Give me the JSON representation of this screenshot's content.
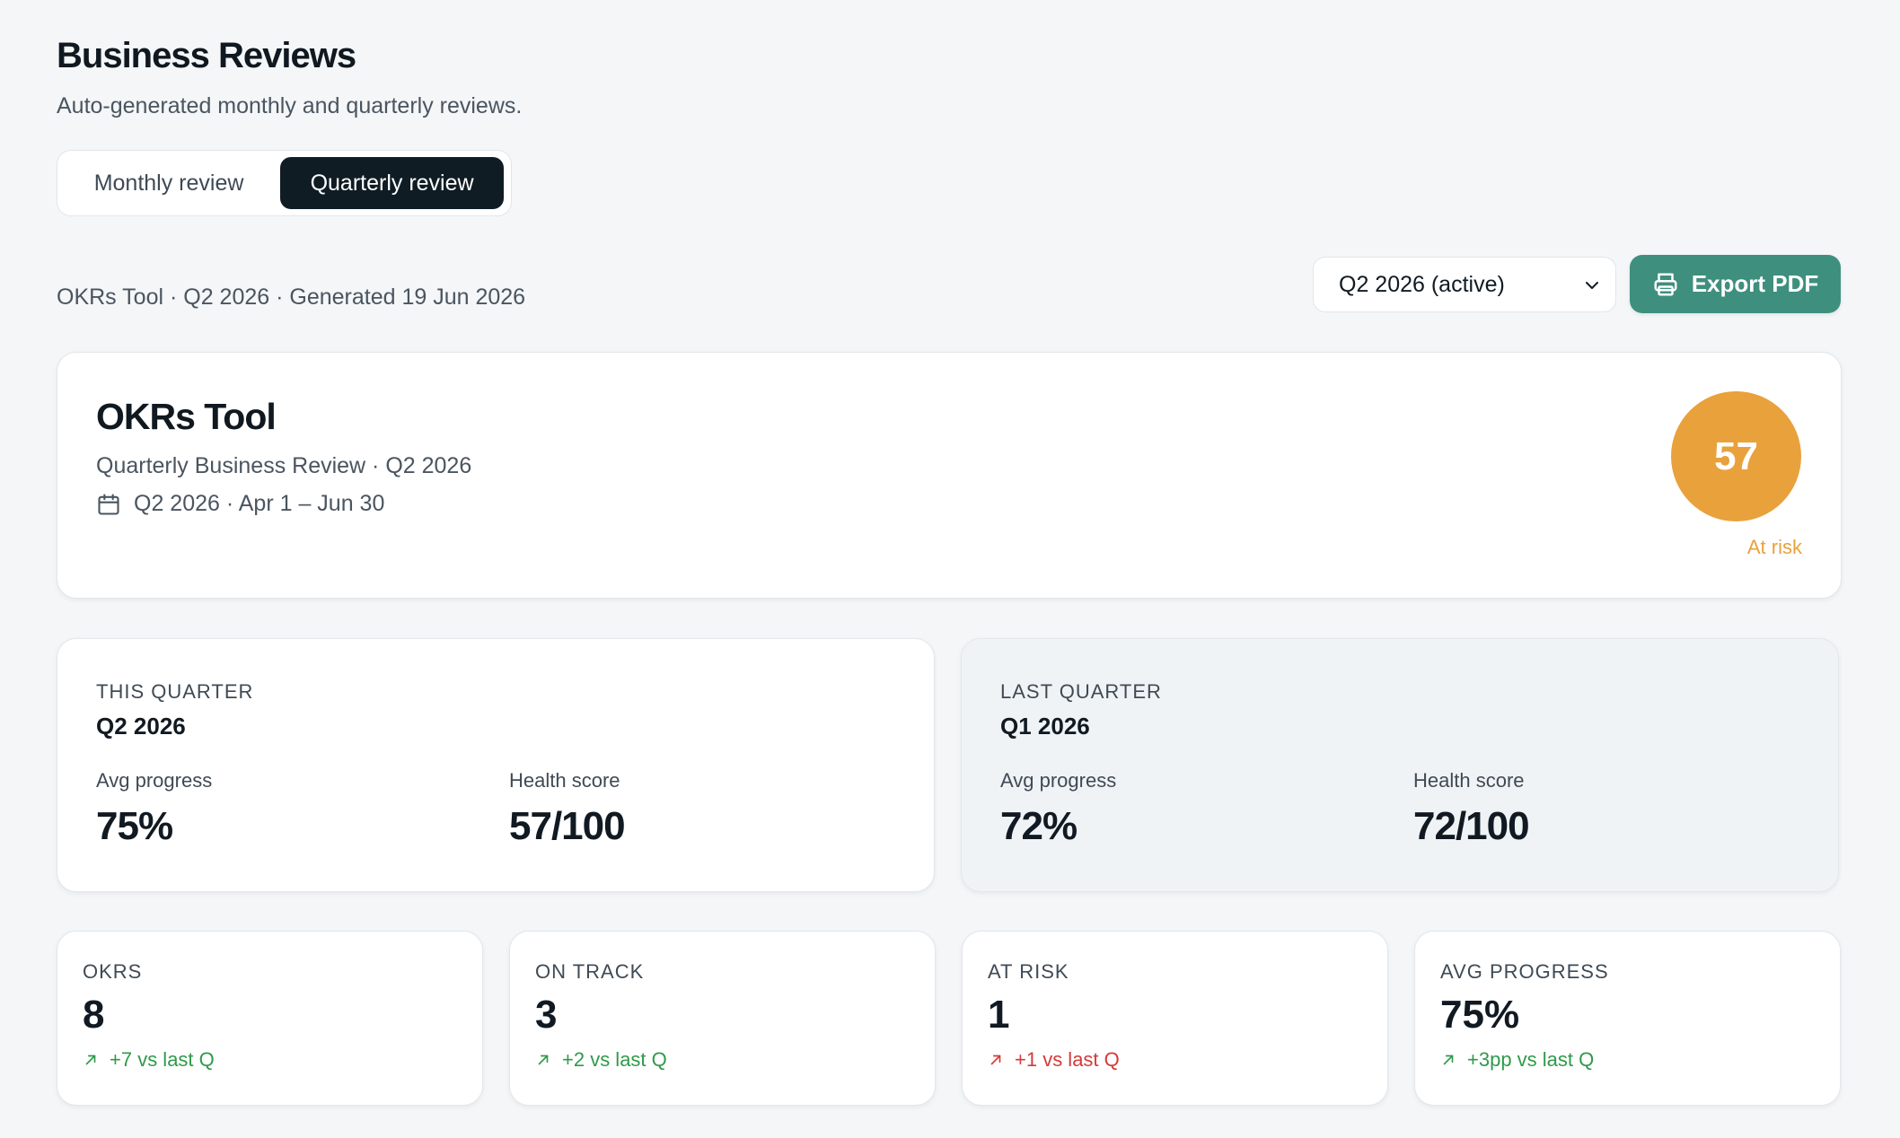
{
  "header": {
    "title": "Business Reviews",
    "subtitle": "Auto-generated monthly and quarterly reviews."
  },
  "tabs": [
    {
      "label": "Monthly review",
      "active": false
    },
    {
      "label": "Quarterly review",
      "active": true
    }
  ],
  "meta": "OKRs Tool · Q2 2026 · Generated 19 Jun 2026",
  "quarter_select": {
    "value": "Q2 2026 (active)"
  },
  "export_button": {
    "label": "Export PDF"
  },
  "hero": {
    "title": "OKRs Tool",
    "subtitle": "Quarterly Business Review · Q2 2026",
    "dates": "Q2 2026 · Apr 1 – Jun 30",
    "score": "57",
    "score_status": "At risk",
    "score_color": "#e9a13c"
  },
  "this_quarter": {
    "eyebrow": "THIS QUARTER",
    "name": "Q2 2026",
    "avg_progress_label": "Avg progress",
    "avg_progress_value": "75%",
    "health_label": "Health score",
    "health_value": "57/100"
  },
  "last_quarter": {
    "eyebrow": "LAST QUARTER",
    "name": "Q1 2026",
    "avg_progress_label": "Avg progress",
    "avg_progress_value": "72%",
    "health_label": "Health score",
    "health_value": "72/100"
  },
  "stats": [
    {
      "label": "OKRS",
      "value": "8",
      "delta": "+7 vs last Q",
      "tone": "good"
    },
    {
      "label": "ON TRACK",
      "value": "3",
      "delta": "+2 vs last Q",
      "tone": "good"
    },
    {
      "label": "AT RISK",
      "value": "1",
      "delta": "+1 vs last Q",
      "tone": "bad"
    },
    {
      "label": "AVG PROGRESS",
      "value": "75%",
      "delta": "+3pp vs last Q",
      "tone": "good"
    }
  ],
  "colors": {
    "accent": "#3f8f7e",
    "good": "#2f9a4a",
    "bad": "#d53a3a",
    "warning": "#e9a13c"
  }
}
